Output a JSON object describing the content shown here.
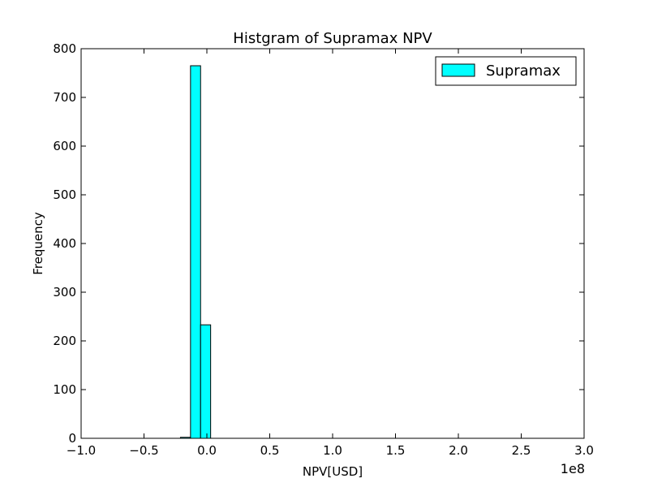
{
  "chart_data": {
    "type": "bar",
    "title": "Histgram of Supramax NPV",
    "xlabel": "NPV[USD]",
    "ylabel": "Frequency",
    "x_offset_label": "1e8",
    "xlim": [
      -1.0,
      3.0
    ],
    "ylim": [
      0,
      800
    ],
    "xticks": [
      -1.0,
      -0.5,
      0.0,
      0.5,
      1.0,
      1.5,
      2.0,
      2.5,
      3.0
    ],
    "xtick_labels": [
      "−1.0",
      "−0.5",
      "0.0",
      "0.5",
      "1.0",
      "1.5",
      "2.0",
      "2.5",
      "3.0"
    ],
    "yticks": [
      0,
      100,
      200,
      300,
      400,
      500,
      600,
      700,
      800
    ],
    "ytick_labels": [
      "0",
      "100",
      "200",
      "300",
      "400",
      "500",
      "600",
      "700",
      "800"
    ],
    "grid": false,
    "legend": {
      "position": "top-right",
      "entries": [
        "Supramax"
      ]
    },
    "series": [
      {
        "name": "Supramax",
        "color": "#00FFFF",
        "edge_color": "#000000",
        "bins": [
          {
            "x0": -0.21,
            "x1": -0.13,
            "count": 2
          },
          {
            "x0": -0.13,
            "x1": -0.05,
            "count": 765
          },
          {
            "x0": -0.05,
            "x1": 0.03,
            "count": 233
          }
        ]
      }
    ]
  }
}
